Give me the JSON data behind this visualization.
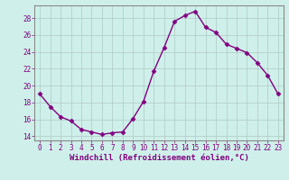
{
  "x": [
    0,
    1,
    2,
    3,
    4,
    5,
    6,
    7,
    8,
    9,
    10,
    11,
    12,
    13,
    14,
    15,
    16,
    17,
    18,
    19,
    20,
    21,
    22,
    23
  ],
  "y": [
    19.0,
    17.5,
    16.3,
    15.8,
    14.8,
    14.5,
    14.2,
    14.4,
    14.5,
    16.1,
    18.1,
    21.7,
    24.5,
    27.6,
    28.3,
    28.8,
    26.9,
    26.3,
    24.9,
    24.4,
    23.9,
    22.7,
    21.2,
    19.0
  ],
  "line_color": "#800080",
  "marker": "D",
  "marker_size": 2.5,
  "bg_color": "#cff0ea",
  "grid_color": "#b0c8c4",
  "xlabel": "Windchill (Refroidissement éolien,°C)",
  "ylim": [
    13.5,
    29.5
  ],
  "xlim": [
    -0.5,
    23.5
  ],
  "yticks": [
    14,
    16,
    18,
    20,
    22,
    24,
    26,
    28
  ],
  "xticks": [
    0,
    1,
    2,
    3,
    4,
    5,
    6,
    7,
    8,
    9,
    10,
    11,
    12,
    13,
    14,
    15,
    16,
    17,
    18,
    19,
    20,
    21,
    22,
    23
  ],
  "tick_color": "#800080",
  "tick_fontsize": 5.5,
  "xlabel_fontsize": 6.5,
  "spine_color": "#888888",
  "linewidth": 1.0
}
